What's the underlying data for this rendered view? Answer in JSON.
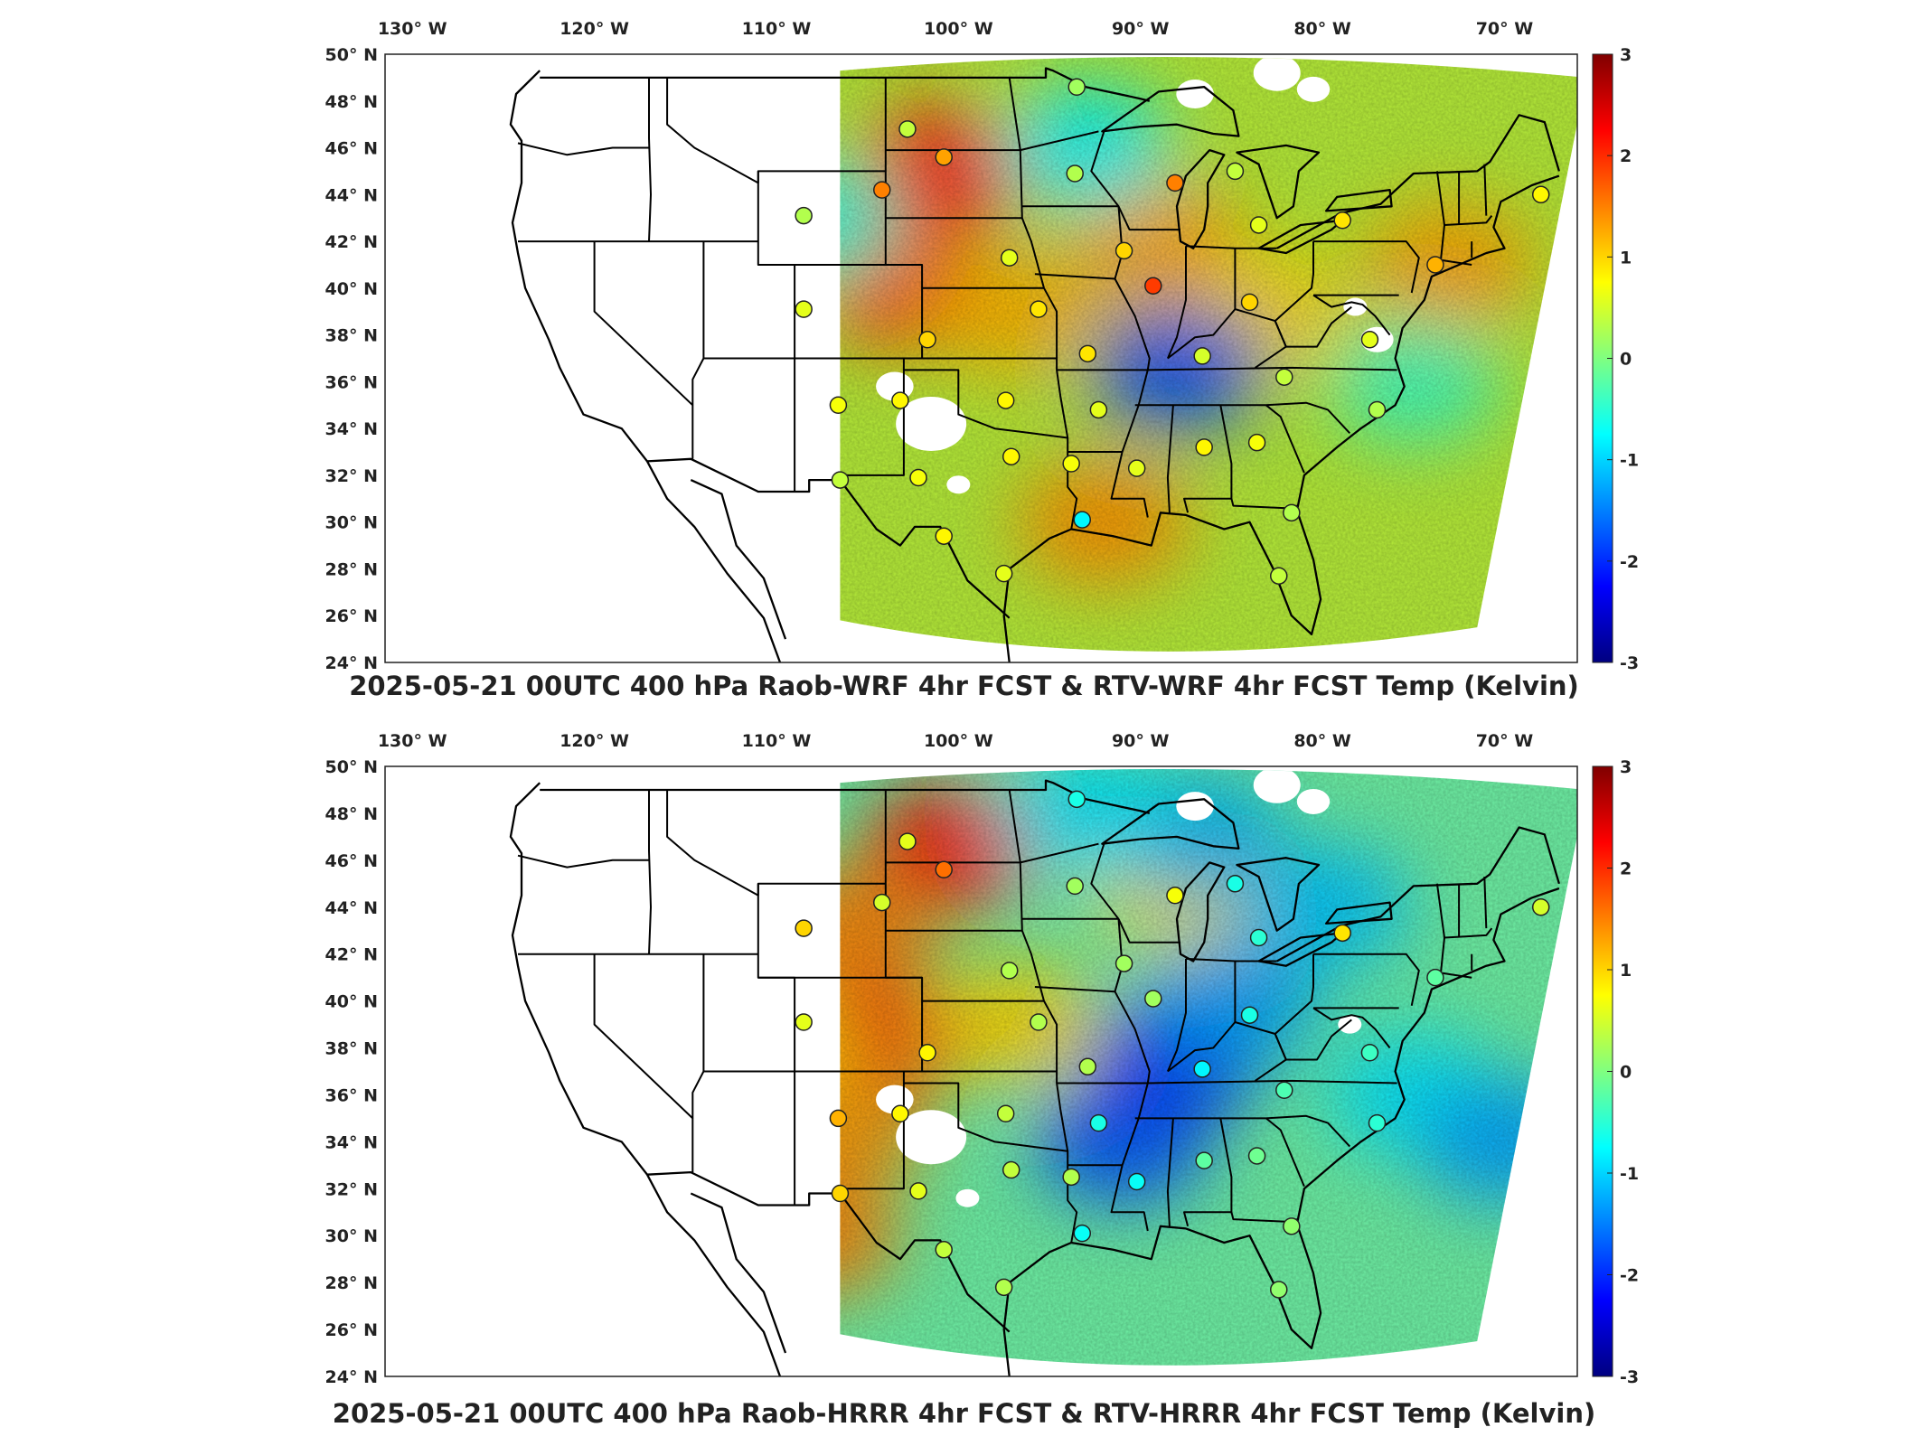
{
  "axes": {
    "lon_labels": [
      "130° W",
      "120° W",
      "110° W",
      "100° W",
      "90° W",
      "80° W",
      "70° W"
    ],
    "lon_values": [
      -130,
      -120,
      -110,
      -100,
      -90,
      -80,
      -70
    ],
    "lat_labels": [
      "50° N",
      "48° N",
      "46° N",
      "44° N",
      "42° N",
      "40° N",
      "38° N",
      "36° N",
      "34° N",
      "32° N",
      "30° N",
      "28° N",
      "26° N",
      "24° N"
    ],
    "lat_values": [
      50,
      48,
      46,
      44,
      42,
      40,
      38,
      36,
      34,
      32,
      30,
      28,
      26,
      24
    ],
    "lon_range": [
      -131.5,
      -66
    ],
    "lat_range": [
      24,
      50
    ]
  },
  "colorbar": {
    "ticks": [
      "3",
      "2",
      "1",
      "0",
      "-1",
      "-2",
      "-3"
    ],
    "values": [
      3,
      2,
      1,
      0,
      -1,
      -2,
      -3
    ],
    "range": [
      -3,
      3
    ],
    "colormap": "jet",
    "colors": [
      "#800000",
      "#ff0000",
      "#ff8000",
      "#ffff00",
      "#80ff80",
      "#00ffff",
      "#0080ff",
      "#0000ff",
      "#000080"
    ]
  },
  "panels": [
    {
      "id": "top",
      "title": "2025-05-21 00UTC 400 hPa Raob-WRF 4hr FCST & RTV-WRF 4hr FCST Temp (Kelvin)",
      "field_base_color": "#b6ec3a",
      "warm_regions": [
        {
          "lon": -101,
          "lat": 45,
          "level": 2.2
        },
        {
          "lon": -103,
          "lat": 40,
          "level": 1.8
        },
        {
          "lon": -97,
          "lat": 39,
          "level": 1.2
        },
        {
          "lon": -89,
          "lat": 42,
          "level": 1.3
        },
        {
          "lon": -92,
          "lat": 30,
          "level": 1.4
        },
        {
          "lon": -73,
          "lat": 41,
          "level": 1.3
        },
        {
          "lon": -83,
          "lat": 39,
          "level": 1.0
        }
      ],
      "cool_regions": [
        {
          "lon": -88,
          "lat": 36.5,
          "level": -1.8
        },
        {
          "lon": -108,
          "lat": 43,
          "level": -0.6
        },
        {
          "lon": -75,
          "lat": 36,
          "level": -0.4
        },
        {
          "lon": -93,
          "lat": 46,
          "level": -0.8
        }
      ],
      "stations": [
        {
          "lon": -93.5,
          "lat": 48.6,
          "value": 0.2
        },
        {
          "lon": -102.8,
          "lat": 46.8,
          "value": 0.4
        },
        {
          "lon": -100.8,
          "lat": 45.6,
          "value": 1.3
        },
        {
          "lon": -104.2,
          "lat": 44.2,
          "value": 1.5
        },
        {
          "lon": -93.6,
          "lat": 44.9,
          "value": 0.3
        },
        {
          "lon": -88.1,
          "lat": 44.5,
          "value": 1.5
        },
        {
          "lon": -84.8,
          "lat": 45.0,
          "value": 0.4
        },
        {
          "lon": -83.5,
          "lat": 42.7,
          "value": 0.6
        },
        {
          "lon": -78.9,
          "lat": 42.9,
          "value": 0.9
        },
        {
          "lon": -68.0,
          "lat": 44.0,
          "value": 0.8
        },
        {
          "lon": -108.5,
          "lat": 43.1,
          "value": 0.3
        },
        {
          "lon": -97.2,
          "lat": 41.3,
          "value": 0.6
        },
        {
          "lon": -90.9,
          "lat": 41.6,
          "value": 1.0
        },
        {
          "lon": -89.3,
          "lat": 40.1,
          "value": 1.9
        },
        {
          "lon": -84.0,
          "lat": 39.4,
          "value": 1.0
        },
        {
          "lon": -73.8,
          "lat": 41.0,
          "value": 1.2
        },
        {
          "lon": -108.5,
          "lat": 39.1,
          "value": 0.6
        },
        {
          "lon": -95.6,
          "lat": 39.1,
          "value": 0.9
        },
        {
          "lon": -101.7,
          "lat": 37.8,
          "value": 1.0
        },
        {
          "lon": -92.9,
          "lat": 37.2,
          "value": 0.9
        },
        {
          "lon": -86.6,
          "lat": 37.1,
          "value": 0.5
        },
        {
          "lon": -82.1,
          "lat": 36.2,
          "value": 0.4
        },
        {
          "lon": -77.4,
          "lat": 37.8,
          "value": 0.6
        },
        {
          "lon": -106.6,
          "lat": 35.0,
          "value": 0.7
        },
        {
          "lon": -103.2,
          "lat": 35.2,
          "value": 0.8
        },
        {
          "lon": -97.4,
          "lat": 35.2,
          "value": 0.8
        },
        {
          "lon": -92.3,
          "lat": 34.8,
          "value": 0.6
        },
        {
          "lon": -77.0,
          "lat": 34.8,
          "value": 0.3
        },
        {
          "lon": -97.1,
          "lat": 32.8,
          "value": 0.8
        },
        {
          "lon": -93.8,
          "lat": 32.5,
          "value": 0.7
        },
        {
          "lon": -90.2,
          "lat": 32.3,
          "value": 0.6
        },
        {
          "lon": -86.5,
          "lat": 33.2,
          "value": 0.8
        },
        {
          "lon": -83.6,
          "lat": 33.4,
          "value": 0.7
        },
        {
          "lon": -106.5,
          "lat": 31.8,
          "value": 0.4
        },
        {
          "lon": -102.2,
          "lat": 31.9,
          "value": 0.7
        },
        {
          "lon": -93.2,
          "lat": 30.1,
          "value": -0.8
        },
        {
          "lon": -81.7,
          "lat": 30.4,
          "value": 0.3
        },
        {
          "lon": -100.8,
          "lat": 29.4,
          "value": 0.8
        },
        {
          "lon": -97.5,
          "lat": 27.8,
          "value": 0.6
        },
        {
          "lon": -82.4,
          "lat": 27.7,
          "value": 0.4
        }
      ],
      "blanks": [
        {
          "lon": -101.5,
          "lat": 34.2,
          "r": 30
        },
        {
          "lon": -103.5,
          "lat": 35.8,
          "r": 16
        },
        {
          "lon": -87,
          "lat": 48.3,
          "r": 16
        },
        {
          "lon": -82.5,
          "lat": 49.2,
          "r": 20
        },
        {
          "lon": -80.5,
          "lat": 48.5,
          "r": 14
        },
        {
          "lon": -77,
          "lat": 37.8,
          "r": 14
        },
        {
          "lon": -78.2,
          "lat": 39.2,
          "r": 10
        },
        {
          "lon": -100,
          "lat": 31.6,
          "r": 10
        }
      ]
    },
    {
      "id": "bottom",
      "title": "2025-05-21 00UTC 400 hPa Raob-HRRR 4hr FCST & RTV-HRRR 4hr FCST Temp (Kelvin)",
      "field_base_color": "#6ff0a5",
      "warm_regions": [
        {
          "lon": -100.5,
          "lat": 46.5,
          "level": 2.2
        },
        {
          "lon": -106,
          "lat": 43,
          "level": 1.5
        },
        {
          "lon": -104,
          "lat": 38.5,
          "level": 1.9
        },
        {
          "lon": -106.5,
          "lat": 34.5,
          "level": 1.4
        },
        {
          "lon": -108,
          "lat": 30,
          "level": 1.5
        },
        {
          "lon": -97,
          "lat": 39,
          "level": 1.0
        },
        {
          "lon": -110,
          "lat": 38,
          "level": 1.1
        },
        {
          "lon": -88,
          "lat": 44.8,
          "level": 0.9
        }
      ],
      "cool_regions": [
        {
          "lon": -88,
          "lat": 37.5,
          "level": -2.2
        },
        {
          "lon": -91,
          "lat": 34,
          "level": -1.8
        },
        {
          "lon": -87,
          "lat": 47,
          "level": -1.2
        },
        {
          "lon": -80,
          "lat": 44,
          "level": -1.1
        },
        {
          "lon": -75,
          "lat": 36,
          "level": -0.9
        },
        {
          "lon": -70,
          "lat": 34,
          "level": -1.3
        },
        {
          "lon": -93,
          "lat": 48,
          "level": -0.9
        },
        {
          "lon": -85,
          "lat": 40,
          "level": -1.3
        }
      ],
      "stations": [
        {
          "lon": -93.5,
          "lat": 48.6,
          "value": -0.6
        },
        {
          "lon": -102.8,
          "lat": 46.8,
          "value": 0.6
        },
        {
          "lon": -100.8,
          "lat": 45.6,
          "value": 1.6
        },
        {
          "lon": -104.2,
          "lat": 44.2,
          "value": 0.5
        },
        {
          "lon": -93.6,
          "lat": 44.9,
          "value": 0.2
        },
        {
          "lon": -88.1,
          "lat": 44.5,
          "value": 0.7
        },
        {
          "lon": -84.8,
          "lat": 45.0,
          "value": -0.6
        },
        {
          "lon": -83.5,
          "lat": 42.7,
          "value": -0.5
        },
        {
          "lon": -78.9,
          "lat": 42.9,
          "value": 0.9
        },
        {
          "lon": -68.0,
          "lat": 44.0,
          "value": 0.5
        },
        {
          "lon": -108.5,
          "lat": 43.1,
          "value": 1.0
        },
        {
          "lon": -97.2,
          "lat": 41.3,
          "value": 0.3
        },
        {
          "lon": -90.9,
          "lat": 41.6,
          "value": 0.2
        },
        {
          "lon": -89.3,
          "lat": 40.1,
          "value": 0.2
        },
        {
          "lon": -84.0,
          "lat": 39.4,
          "value": -0.6
        },
        {
          "lon": -73.8,
          "lat": 41.0,
          "value": -0.2
        },
        {
          "lon": -108.5,
          "lat": 39.1,
          "value": 0.6
        },
        {
          "lon": -95.6,
          "lat": 39.1,
          "value": 0.3
        },
        {
          "lon": -101.7,
          "lat": 37.8,
          "value": 0.8
        },
        {
          "lon": -92.9,
          "lat": 37.2,
          "value": 0.3
        },
        {
          "lon": -86.6,
          "lat": 37.1,
          "value": -0.8
        },
        {
          "lon": -82.1,
          "lat": 36.2,
          "value": -0.3
        },
        {
          "lon": -77.4,
          "lat": 37.8,
          "value": -0.4
        },
        {
          "lon": -106.6,
          "lat": 35.0,
          "value": 1.2
        },
        {
          "lon": -103.2,
          "lat": 35.2,
          "value": 0.8
        },
        {
          "lon": -97.4,
          "lat": 35.2,
          "value": 0.4
        },
        {
          "lon": -92.3,
          "lat": 34.8,
          "value": -0.6
        },
        {
          "lon": -77.0,
          "lat": 34.8,
          "value": -0.5
        },
        {
          "lon": -97.1,
          "lat": 32.8,
          "value": 0.4
        },
        {
          "lon": -93.8,
          "lat": 32.5,
          "value": 0.3
        },
        {
          "lon": -90.2,
          "lat": 32.3,
          "value": -0.7
        },
        {
          "lon": -86.5,
          "lat": 33.2,
          "value": -0.2
        },
        {
          "lon": -83.6,
          "lat": 33.4,
          "value": -0.1
        },
        {
          "lon": -106.5,
          "lat": 31.8,
          "value": 1.0
        },
        {
          "lon": -102.2,
          "lat": 31.9,
          "value": 0.6
        },
        {
          "lon": -93.2,
          "lat": 30.1,
          "value": -0.7
        },
        {
          "lon": -81.7,
          "lat": 30.4,
          "value": 0.1
        },
        {
          "lon": -100.8,
          "lat": 29.4,
          "value": 0.4
        },
        {
          "lon": -97.5,
          "lat": 27.8,
          "value": 0.3
        },
        {
          "lon": -82.4,
          "lat": 27.7,
          "value": 0.1
        }
      ],
      "blanks": [
        {
          "lon": -101.5,
          "lat": 34.2,
          "r": 30
        },
        {
          "lon": -103.5,
          "lat": 35.8,
          "r": 16
        },
        {
          "lon": -87,
          "lat": 48.3,
          "r": 16
        },
        {
          "lon": -82.5,
          "lat": 49.2,
          "r": 20
        },
        {
          "lon": -80.5,
          "lat": 48.5,
          "r": 14
        },
        {
          "lon": -109.8,
          "lat": 34.0,
          "r": 12
        },
        {
          "lon": -99.5,
          "lat": 31.6,
          "r": 10
        },
        {
          "lon": -78.5,
          "lat": 39.0,
          "r": 10
        }
      ]
    }
  ]
}
